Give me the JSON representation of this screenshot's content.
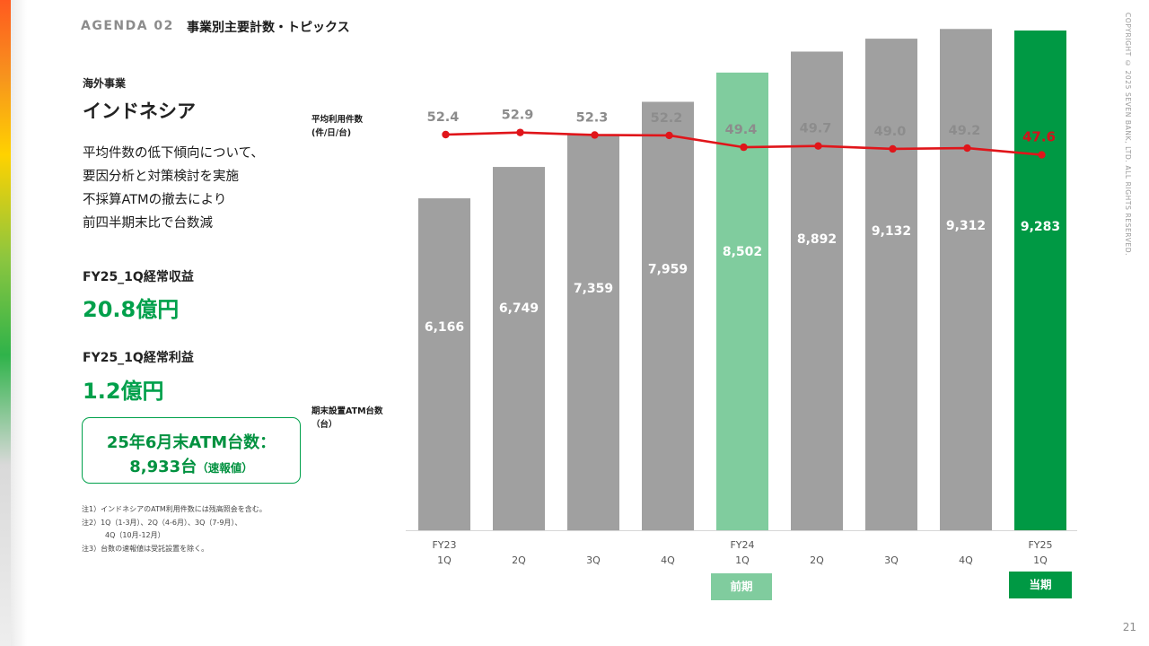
{
  "header": {
    "agenda": "AGENDA 02",
    "title": "事業別主要計数・トピックス",
    "copyright": "COPYRIGHT © 2025 SEVEN BANK, LTD. ALL RIGHTS RESERVED.",
    "page_number": "21"
  },
  "left_panel": {
    "segment": "海外事業",
    "country": "インドネシア",
    "description": [
      "平均件数の低下傾向について、",
      "要因分析と対策検討を実施",
      "不採算ATMの撤去により",
      "前四半期末比で台数減"
    ],
    "kpis": [
      {
        "label": "FY25_1Q経常収益",
        "value": "20.8億円"
      },
      {
        "label": "FY25_1Q経常利益",
        "value": "1.2億円"
      }
    ],
    "atm_box": {
      "line1": "25年6月末ATM台数：",
      "line2_value": "8,933台",
      "line2_note": "（速報値）"
    },
    "notes": [
      "注1）インドネシアのATM利用件数には残高照会を含む。",
      "注2）1Q（1-3月）、2Q（4-6月）、3Q（7-9月）、",
      "4Q（10月-12月）",
      "注3）台数の速報値は受託設置を除く。"
    ]
  },
  "chart_labels": {
    "line_axis": [
      "平均利用件数",
      "(件/日/台)"
    ],
    "bar_axis": [
      "期末設置ATM台数",
      "（台）"
    ]
  },
  "badges": {
    "previous": "前期",
    "current": "当期"
  },
  "colors": {
    "bar_gray": "#a0a0a0",
    "bar_previous": "#80cc9e",
    "bar_current": "#009944",
    "line": "#e0151a",
    "accent_green": "#00a04b"
  },
  "chart_data": {
    "type": "bar+line",
    "categories": [
      [
        "FY23",
        "1Q"
      ],
      [
        "",
        "2Q"
      ],
      [
        "",
        "3Q"
      ],
      [
        "",
        "4Q"
      ],
      [
        "FY24",
        "1Q"
      ],
      [
        "",
        "2Q"
      ],
      [
        "",
        "3Q"
      ],
      [
        "",
        "4Q"
      ],
      [
        "FY25",
        "1Q"
      ]
    ],
    "bars": {
      "values": [
        6166,
        6749,
        7359,
        7959,
        8502,
        8892,
        9132,
        9312,
        9283
      ],
      "labels": [
        "6,166",
        "6,749",
        "7,359",
        "7,959",
        "8,502",
        "8,892",
        "9,132",
        "9,312",
        "9,283"
      ],
      "highlight_previous_index": 4,
      "highlight_current_index": 8
    },
    "line": {
      "values": [
        52.4,
        52.9,
        52.3,
        52.2,
        49.4,
        49.7,
        49.0,
        49.2,
        47.6
      ],
      "labels": [
        "52.4",
        "52.9",
        "52.3",
        "52.2",
        "49.4",
        "49.7",
        "49.0",
        "49.2",
        "47.6"
      ]
    }
  }
}
